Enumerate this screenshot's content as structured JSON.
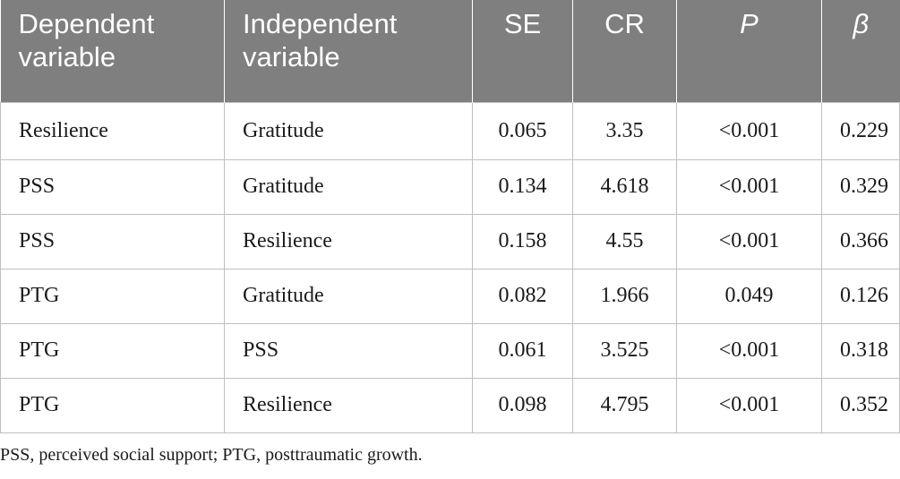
{
  "table": {
    "headers": [
      "Dependent variable",
      "Independent variable",
      "SE",
      "CR",
      "P",
      "β"
    ],
    "rows": [
      [
        "Resilience",
        "Gratitude",
        "0.065",
        "3.35",
        "<0.001",
        "0.229"
      ],
      [
        "PSS",
        "Gratitude",
        "0.134",
        "4.618",
        "<0.001",
        "0.329"
      ],
      [
        "PSS",
        "Resilience",
        "0.158",
        "4.55",
        "<0.001",
        "0.366"
      ],
      [
        "PTG",
        "Gratitude",
        "0.082",
        "1.966",
        "0.049",
        "0.126"
      ],
      [
        "PTG",
        "PSS",
        "0.061",
        "3.525",
        "<0.001",
        "0.318"
      ],
      [
        "PTG",
        "Resilience",
        "0.098",
        "4.795",
        "<0.001",
        "0.352"
      ]
    ]
  },
  "footnote": "PSS, perceived social support; PTG, posttraumatic growth.",
  "colors": {
    "header_background": "#7f7f7f",
    "header_text": "#ffffff",
    "grid_line": "#bfbfbf",
    "body_text": "#1a1a1a"
  }
}
